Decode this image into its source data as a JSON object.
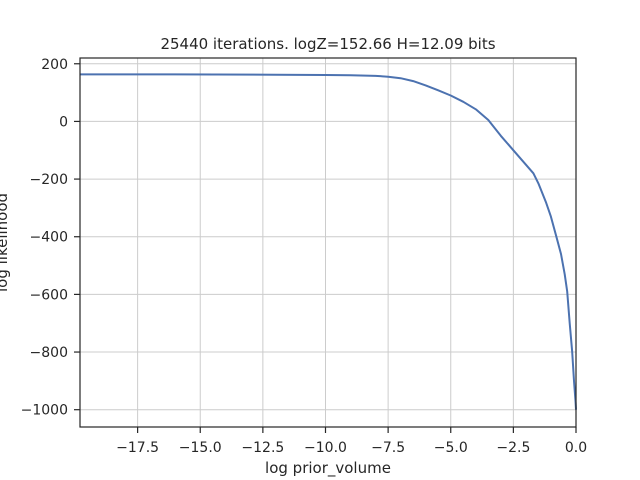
{
  "chart_data": {
    "type": "line",
    "title": "25440 iterations. logZ=152.66 H=12.09 bits",
    "xlabel": "log prior_volume",
    "ylabel": "log likelihood",
    "xlim": [
      -19.8,
      0.0
    ],
    "ylim": [
      -1060,
      220
    ],
    "grid": true,
    "x_ticks": [
      -17.5,
      -15.0,
      -12.5,
      -10.0,
      -7.5,
      -5.0,
      -2.5,
      0.0
    ],
    "x_tick_labels": [
      "−17.5",
      "−15.0",
      "−12.5",
      "−10.0",
      "−7.5",
      "−5.0",
      "−2.5",
      "0.0"
    ],
    "y_ticks": [
      200,
      0,
      -200,
      -400,
      -600,
      -800,
      -1000
    ],
    "y_tick_labels": [
      "200",
      "0",
      "−200",
      "−400",
      "−600",
      "−800",
      "−1000"
    ],
    "series": [
      {
        "color": "#4c72b0",
        "x": [
          -19.8,
          -16.0,
          -12.0,
          -10.0,
          -9.0,
          -8.0,
          -7.5,
          -7.0,
          -6.5,
          -6.0,
          -5.5,
          -5.0,
          -4.5,
          -4.0,
          -3.5,
          -3.0,
          -2.5,
          -2.0,
          -1.7,
          -1.5,
          -1.2,
          -1.0,
          -0.8,
          -0.6,
          -0.45,
          -0.35,
          -0.25,
          -0.15,
          -0.08,
          -0.02,
          0.0
        ],
        "y": [
          163,
          163,
          162,
          161,
          160,
          158,
          155,
          150,
          140,
          125,
          108,
          90,
          68,
          42,
          5,
          -50,
          -100,
          -150,
          -180,
          -215,
          -280,
          -330,
          -395,
          -460,
          -530,
          -590,
          -700,
          -800,
          -900,
          -970,
          -1000
        ]
      }
    ]
  }
}
